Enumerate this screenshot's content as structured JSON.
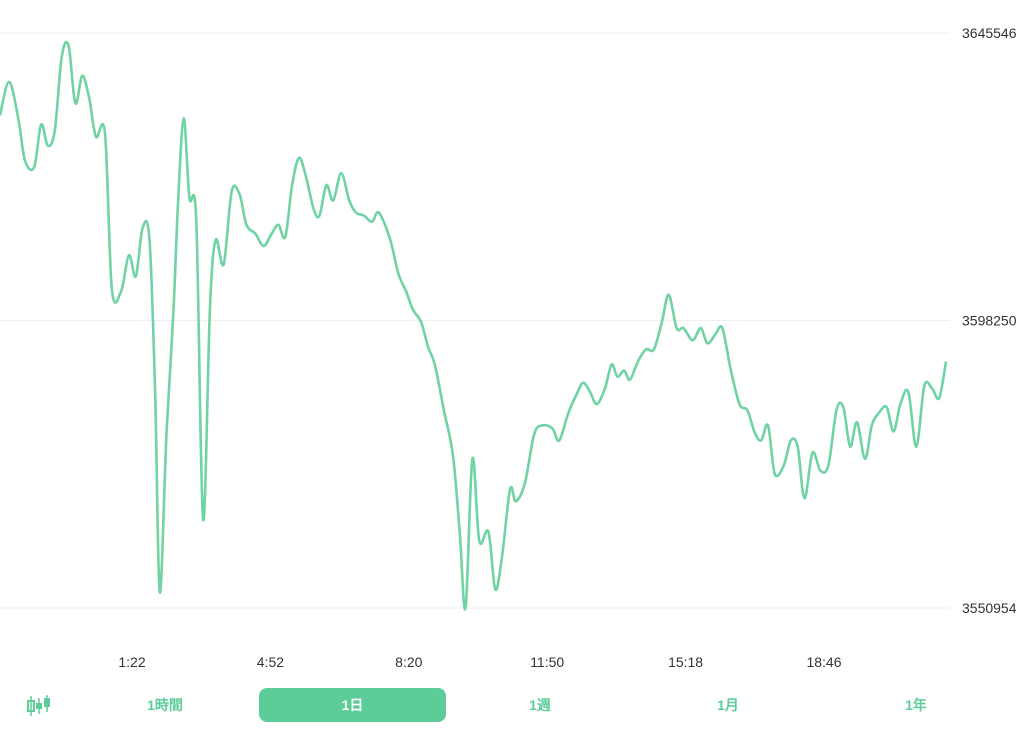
{
  "colors": {
    "accent": "#5ccc98",
    "line": "#6fd3a3"
  },
  "chart_data": {
    "type": "line",
    "title": "",
    "xlabel": "",
    "ylabel": "",
    "ylim": [
      3550954,
      3645546
    ],
    "y_ticks": [
      "3645546",
      "3598250",
      "3550954"
    ],
    "x_ticks": [
      "1:22",
      "4:52",
      "8:20",
      "11:50",
      "15:18",
      "18:46"
    ],
    "grid": true,
    "series": [
      {
        "name": "",
        "points": [
          [
            0.0,
            3632000
          ],
          [
            0.8,
            3637500
          ],
          [
            1.6,
            3631500
          ],
          [
            2.2,
            3624500
          ],
          [
            3.0,
            3623500
          ],
          [
            3.6,
            3630500
          ],
          [
            4.2,
            3627000
          ],
          [
            4.8,
            3629500
          ],
          [
            5.4,
            3641500
          ],
          [
            6.0,
            3643500
          ],
          [
            6.6,
            3634000
          ],
          [
            7.2,
            3638500
          ],
          [
            7.8,
            3635000
          ],
          [
            8.4,
            3628500
          ],
          [
            9.2,
            3629000
          ],
          [
            9.8,
            3603500
          ],
          [
            10.6,
            3603000
          ],
          [
            11.3,
            3609000
          ],
          [
            11.9,
            3605500
          ],
          [
            12.5,
            3613500
          ],
          [
            13.1,
            3611500
          ],
          [
            13.6,
            3586000
          ],
          [
            14.0,
            3553500
          ],
          [
            14.6,
            3580000
          ],
          [
            15.2,
            3600000
          ],
          [
            15.6,
            3617500
          ],
          [
            16.1,
            3631500
          ],
          [
            16.6,
            3618500
          ],
          [
            17.2,
            3614500
          ],
          [
            17.8,
            3565500
          ],
          [
            18.4,
            3600500
          ],
          [
            18.9,
            3611500
          ],
          [
            19.6,
            3607500
          ],
          [
            20.3,
            3619500
          ],
          [
            21.0,
            3619000
          ],
          [
            21.6,
            3614000
          ],
          [
            22.4,
            3612500
          ],
          [
            23.1,
            3610500
          ],
          [
            23.8,
            3612500
          ],
          [
            24.4,
            3614000
          ],
          [
            25.0,
            3612000
          ],
          [
            25.6,
            3620500
          ],
          [
            26.2,
            3625000
          ],
          [
            26.8,
            3622000
          ],
          [
            27.5,
            3616500
          ],
          [
            28.0,
            3615500
          ],
          [
            28.6,
            3620500
          ],
          [
            29.2,
            3618000
          ],
          [
            29.9,
            3622500
          ],
          [
            30.6,
            3618000
          ],
          [
            31.2,
            3616000
          ],
          [
            31.9,
            3615500
          ],
          [
            32.6,
            3614500
          ],
          [
            33.2,
            3616000
          ],
          [
            34.2,
            3611500
          ],
          [
            34.9,
            3606000
          ],
          [
            35.6,
            3603000
          ],
          [
            36.2,
            3600000
          ],
          [
            36.9,
            3598000
          ],
          [
            37.5,
            3594000
          ],
          [
            38.1,
            3591000
          ],
          [
            38.9,
            3583500
          ],
          [
            39.7,
            3576000
          ],
          [
            40.3,
            3563000
          ],
          [
            40.8,
            3551000
          ],
          [
            41.4,
            3575500
          ],
          [
            42.0,
            3562000
          ],
          [
            42.8,
            3563500
          ],
          [
            43.4,
            3554000
          ],
          [
            44.0,
            3559500
          ],
          [
            44.7,
            3570500
          ],
          [
            45.2,
            3568500
          ],
          [
            46.0,
            3571500
          ],
          [
            46.8,
            3579500
          ],
          [
            47.5,
            3581000
          ],
          [
            48.4,
            3580500
          ],
          [
            49.0,
            3578500
          ],
          [
            49.8,
            3583000
          ],
          [
            50.5,
            3586000
          ],
          [
            51.1,
            3588000
          ],
          [
            51.7,
            3586500
          ],
          [
            52.3,
            3584500
          ],
          [
            53.0,
            3587000
          ],
          [
            53.6,
            3591000
          ],
          [
            54.1,
            3589000
          ],
          [
            54.7,
            3590000
          ],
          [
            55.2,
            3588500
          ],
          [
            55.9,
            3591500
          ],
          [
            56.6,
            3593500
          ],
          [
            57.3,
            3593500
          ],
          [
            58.0,
            3598000
          ],
          [
            58.6,
            3602500
          ],
          [
            59.3,
            3597000
          ],
          [
            59.9,
            3597000
          ],
          [
            60.7,
            3595000
          ],
          [
            61.4,
            3597000
          ],
          [
            62.0,
            3594500
          ],
          [
            62.7,
            3596000
          ],
          [
            63.3,
            3597000
          ],
          [
            64.0,
            3590500
          ],
          [
            64.8,
            3584500
          ],
          [
            65.5,
            3583500
          ],
          [
            66.1,
            3580000
          ],
          [
            66.7,
            3578500
          ],
          [
            67.3,
            3581000
          ],
          [
            67.9,
            3573000
          ],
          [
            68.7,
            3574500
          ],
          [
            69.3,
            3578500
          ],
          [
            69.9,
            3577500
          ],
          [
            70.5,
            3569000
          ],
          [
            71.2,
            3576500
          ],
          [
            71.9,
            3573500
          ],
          [
            72.6,
            3574500
          ],
          [
            73.3,
            3583500
          ],
          [
            73.9,
            3584000
          ],
          [
            74.5,
            3577500
          ],
          [
            75.1,
            3581500
          ],
          [
            75.8,
            3575500
          ],
          [
            76.4,
            3581000
          ],
          [
            77.0,
            3583000
          ],
          [
            77.7,
            3584000
          ],
          [
            78.3,
            3580000
          ],
          [
            78.9,
            3584500
          ],
          [
            79.6,
            3586500
          ],
          [
            80.3,
            3577500
          ],
          [
            81.0,
            3587500
          ],
          [
            81.7,
            3587000
          ],
          [
            82.3,
            3585500
          ],
          [
            82.9,
            3591500
          ]
        ]
      }
    ]
  },
  "toolbar": {
    "candle_icon": "candlestick-chart-icon",
    "tabs": [
      {
        "label": "1時間",
        "active": false
      },
      {
        "label": "1日",
        "active": true
      },
      {
        "label": "1週",
        "active": false
      },
      {
        "label": "1月",
        "active": false
      },
      {
        "label": "1年",
        "active": false
      }
    ]
  }
}
